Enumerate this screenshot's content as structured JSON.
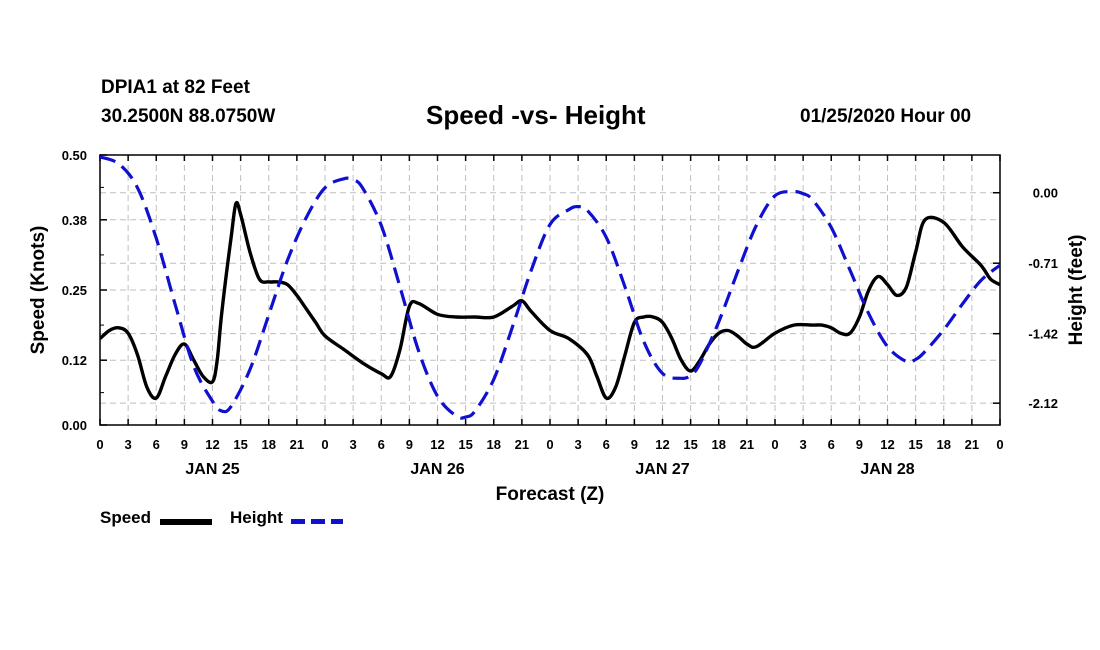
{
  "header": {
    "station": "DPIA1 at 82 Feet",
    "coords": "30.2500N 88.0750W",
    "title": "Speed -vs- Height",
    "datetime": "01/25/2020 Hour 00"
  },
  "legend": {
    "speed_label": "Speed",
    "height_label": "Height"
  },
  "colors": {
    "speed": "#000000",
    "height": "#1010d0",
    "grid": "#bfbfbf"
  },
  "chart_data": {
    "type": "line",
    "title": "Speed -vs- Height",
    "xlabel": "Forecast (Z)",
    "ylabel": "Speed (Knots)",
    "y2label": "Height (feet)",
    "xlim": [
      0,
      96
    ],
    "ylim": [
      0,
      0.5
    ],
    "y2lim": [
      -2.34,
      0.38
    ],
    "x_tick_labels": [
      "0",
      "3",
      "6",
      "9",
      "12",
      "15",
      "18",
      "21",
      "0",
      "3",
      "6",
      "9",
      "12",
      "15",
      "18",
      "21",
      "0",
      "3",
      "6",
      "9",
      "12",
      "15",
      "18",
      "21",
      "0",
      "3",
      "6",
      "9",
      "12",
      "15",
      "18",
      "21",
      "0"
    ],
    "y_ticks": [
      0.0,
      0.12,
      0.25,
      0.38,
      0.5
    ],
    "y_tick_labels": [
      "0.00",
      "0.12",
      "0.25",
      "0.38",
      "0.50"
    ],
    "y2_ticks": [
      0.0,
      -0.71,
      -1.42,
      -2.12
    ],
    "y2_tick_labels": [
      "0.00",
      "-0.71",
      "-1.42",
      "-2.12"
    ],
    "day_labels": [
      {
        "hour": 12,
        "label": "JAN 25"
      },
      {
        "hour": 36,
        "label": "JAN 26"
      },
      {
        "hour": 60,
        "label": "JAN 27"
      },
      {
        "hour": 84,
        "label": "JAN 28"
      }
    ],
    "grid": true,
    "series": [
      {
        "name": "Speed",
        "axis": "left",
        "style": "solid",
        "x": [
          0,
          1,
          2,
          3,
          4,
          5,
          6,
          7,
          8,
          9,
          10,
          11,
          12,
          12.5,
          13,
          14,
          14.5,
          15,
          16,
          17,
          18,
          19,
          20,
          21,
          22,
          23,
          24,
          26,
          28,
          30,
          31,
          32,
          33,
          34,
          36,
          38,
          40,
          42,
          44,
          45,
          46,
          48,
          50,
          52,
          53,
          54,
          55,
          56,
          57,
          58,
          59,
          60,
          61,
          62,
          63,
          64,
          65,
          66,
          67,
          68,
          69,
          70,
          72,
          74,
          76,
          77,
          78,
          79,
          80,
          81,
          82,
          83,
          84,
          85,
          86,
          87,
          88,
          90,
          92,
          94,
          95,
          96
        ],
        "values": [
          0.16,
          0.175,
          0.18,
          0.17,
          0.13,
          0.07,
          0.05,
          0.09,
          0.13,
          0.15,
          0.12,
          0.09,
          0.08,
          0.12,
          0.21,
          0.35,
          0.41,
          0.39,
          0.32,
          0.27,
          0.265,
          0.265,
          0.26,
          0.24,
          0.215,
          0.19,
          0.165,
          0.14,
          0.115,
          0.095,
          0.09,
          0.14,
          0.22,
          0.225,
          0.205,
          0.2,
          0.2,
          0.2,
          0.22,
          0.23,
          0.21,
          0.175,
          0.16,
          0.13,
          0.09,
          0.05,
          0.07,
          0.13,
          0.19,
          0.2,
          0.2,
          0.19,
          0.16,
          0.12,
          0.1,
          0.12,
          0.15,
          0.17,
          0.175,
          0.165,
          0.15,
          0.145,
          0.17,
          0.185,
          0.185,
          0.185,
          0.18,
          0.17,
          0.17,
          0.2,
          0.25,
          0.275,
          0.26,
          0.24,
          0.255,
          0.32,
          0.38,
          0.375,
          0.33,
          0.295,
          0.27,
          0.26
        ]
      },
      {
        "name": "Height",
        "axis": "right",
        "style": "dashed",
        "x": [
          0,
          2,
          4,
          6,
          8,
          10,
          12,
          13,
          14,
          16,
          18,
          20,
          22,
          24,
          26,
          27,
          28,
          30,
          32,
          34,
          36,
          38,
          39,
          40,
          42,
          44,
          46,
          48,
          50,
          51,
          52,
          54,
          56,
          58,
          60,
          62,
          63,
          64,
          66,
          68,
          70,
          72,
          74,
          75,
          76,
          78,
          80,
          82,
          84,
          86,
          87,
          88,
          90,
          92,
          94,
          96
        ],
        "values": [
          0.36,
          0.29,
          0.05,
          -0.46,
          -1.12,
          -1.75,
          -2.1,
          -2.2,
          -2.15,
          -1.78,
          -1.23,
          -0.68,
          -0.25,
          0.05,
          0.14,
          0.13,
          0.05,
          -0.33,
          -0.95,
          -1.6,
          -2.05,
          -2.25,
          -2.26,
          -2.2,
          -1.88,
          -1.35,
          -0.78,
          -0.32,
          -0.17,
          -0.14,
          -0.18,
          -0.45,
          -0.95,
          -1.5,
          -1.82,
          -1.87,
          -1.84,
          -1.72,
          -1.3,
          -0.8,
          -0.33,
          -0.03,
          0.01,
          -0.01,
          -0.07,
          -0.35,
          -0.78,
          -1.22,
          -1.55,
          -1.7,
          -1.68,
          -1.6,
          -1.38,
          -1.12,
          -0.88,
          -0.73
        ]
      }
    ]
  }
}
